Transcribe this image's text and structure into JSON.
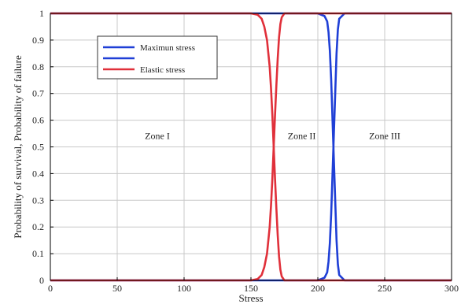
{
  "chart_data": {
    "type": "line",
    "xlabel": "Stress",
    "ylabel": "Probability of survival, Probability of failure",
    "xlim": [
      0,
      300
    ],
    "ylim": [
      0,
      1
    ],
    "xticks": [
      0,
      50,
      100,
      150,
      200,
      250,
      300
    ],
    "yticks": [
      0,
      0.1,
      0.2,
      0.3,
      0.4,
      0.5,
      0.6,
      0.7,
      0.8,
      0.9,
      1
    ],
    "yticklabels": [
      "0",
      "0.1",
      "0.2",
      "0.3",
      "0.4",
      "0.5",
      "0.6",
      "0.7",
      "0.8",
      "0.9",
      "1"
    ],
    "grid": true,
    "legend_position": "top-left",
    "legend": [
      {
        "label": "Maximun stress",
        "color": "#1f3fd6"
      },
      {
        "label": "",
        "color": "#1f3fd6"
      },
      {
        "label": "Elastic stress",
        "color": "#e0303a"
      }
    ],
    "annotations": [
      {
        "text": "Zone I",
        "x": 80,
        "y": 0.53
      },
      {
        "text": "Zone II",
        "x": 188,
        "y": 0.53
      },
      {
        "text": "Zone III",
        "x": 250,
        "y": 0.53
      }
    ],
    "series": [
      {
        "name": "Maximun stress",
        "color": "#1f3fd6",
        "x": [
          0,
          150,
          157,
          160,
          165,
          170,
          180,
          200,
          205,
          207,
          208,
          209,
          210,
          211,
          212,
          213,
          214,
          215,
          216,
          220,
          300
        ],
        "y": [
          1,
          1,
          1,
          1,
          1,
          1,
          1,
          1,
          0.99,
          0.97,
          0.93,
          0.86,
          0.75,
          0.6,
          0.45,
          0.3,
          0.15,
          0.06,
          0.02,
          0,
          0
        ]
      },
      {
        "name": "",
        "color": "#1f3fd6",
        "x": [
          0,
          150,
          157,
          160,
          165,
          170,
          180,
          200,
          205,
          207,
          208,
          209,
          210,
          211,
          212,
          213,
          214,
          215,
          216,
          220,
          300
        ],
        "y": [
          0,
          0,
          0,
          0,
          0,
          0,
          0,
          0,
          0.01,
          0.03,
          0.07,
          0.14,
          0.25,
          0.4,
          0.55,
          0.7,
          0.85,
          0.94,
          0.98,
          1,
          1
        ]
      },
      {
        "name": "Elastic stress",
        "color": "#e0303a",
        "x": [
          0,
          150,
          155,
          158,
          160,
          162,
          164,
          165,
          166,
          167,
          168,
          169,
          170,
          171,
          172,
          173,
          175,
          300
        ],
        "y": [
          1,
          1,
          0.995,
          0.98,
          0.95,
          0.9,
          0.8,
          0.72,
          0.62,
          0.5,
          0.38,
          0.27,
          0.17,
          0.09,
          0.04,
          0.015,
          0,
          0
        ]
      },
      {
        "name": "",
        "color": "#e0303a",
        "x": [
          0,
          150,
          155,
          158,
          160,
          162,
          164,
          165,
          166,
          167,
          168,
          169,
          170,
          171,
          172,
          173,
          175,
          300
        ],
        "y": [
          0,
          0,
          0.005,
          0.02,
          0.05,
          0.1,
          0.2,
          0.28,
          0.38,
          0.5,
          0.62,
          0.73,
          0.83,
          0.91,
          0.96,
          0.985,
          1,
          1
        ]
      }
    ]
  }
}
